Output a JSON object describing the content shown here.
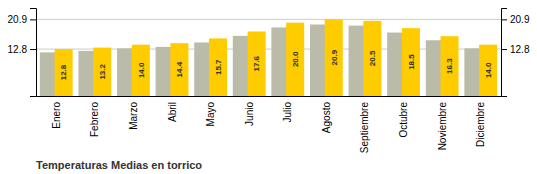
{
  "chart_data": {
    "type": "bar",
    "title": "Temperaturas Medias en torrico",
    "categories": [
      "Enero",
      "Febrero",
      "Marzo",
      "Abril",
      "Mayo",
      "Junio",
      "Julio",
      "Agosto",
      "Septiembre",
      "Octubre",
      "Noviembre",
      "Diciembre"
    ],
    "series": [
      {
        "color": "#BBBBAA",
        "values": [
          11.9,
          12.3,
          13.0,
          13.4,
          14.6,
          16.4,
          18.7,
          19.5,
          19.2,
          17.3,
          15.2,
          13.0
        ]
      },
      {
        "color": "#FFCC00",
        "values": [
          12.8,
          13.2,
          14.0,
          14.4,
          15.7,
          17.6,
          20.0,
          20.9,
          20.5,
          18.5,
          16.3,
          14.0
        ],
        "value_labels": [
          "12.8",
          "13.2",
          "14.0",
          "14.4",
          "15.7",
          "17.6",
          "20.0",
          "20.9",
          "20.5",
          "18.5",
          "16.3",
          "14.0"
        ]
      }
    ],
    "ylim": [
      0,
      24.0
    ],
    "yticks": [
      12.8,
      20.9
    ],
    "grid": true,
    "data_labels": true
  }
}
